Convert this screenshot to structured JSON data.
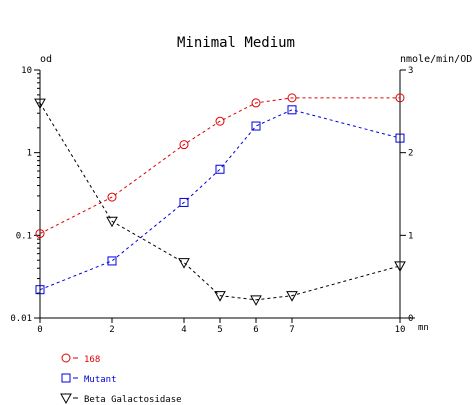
{
  "chart_data": {
    "type": "line",
    "title": "Minimal Medium",
    "x": [
      0,
      2,
      4,
      5,
      6,
      7,
      10
    ],
    "x_ticks": [
      0,
      2,
      4,
      5,
      6,
      7,
      10
    ],
    "x_tick_labels": [
      "0",
      "2",
      "4",
      "5",
      "6",
      "7",
      "10"
    ],
    "xlabel": "mn",
    "xlim": [
      0,
      10
    ],
    "y_left": {
      "label": "od",
      "scale": "log",
      "lim": [
        0.01,
        10
      ],
      "ticks": [
        0.01,
        0.1,
        1,
        10
      ],
      "tick_labels": [
        "0.01",
        "0.1",
        "1",
        "10"
      ]
    },
    "y_right": {
      "label": "nmole/min/OD",
      "scale": "linear",
      "lim": [
        0,
        3
      ],
      "ticks": [
        0,
        1,
        2,
        3
      ],
      "tick_labels": [
        "0",
        "1",
        "2",
        "3"
      ]
    },
    "grid": false,
    "legend_position": "bottom-left",
    "series": [
      {
        "name": "168",
        "axis": "left",
        "color": "#e00000",
        "marker": "circle",
        "style": "dashed",
        "values": [
          0.105,
          0.29,
          1.25,
          2.4,
          4.0,
          4.6,
          4.6
        ]
      },
      {
        "name": "Mutant",
        "axis": "left",
        "color": "#0000e0",
        "marker": "square",
        "style": "dashed",
        "values": [
          0.022,
          0.049,
          0.25,
          0.63,
          2.1,
          3.3,
          1.5
        ]
      },
      {
        "name": "Beta Galactosidase",
        "axis": "right",
        "color": "#000000",
        "marker": "triangle-down",
        "style": "dashed",
        "values": [
          2.6,
          1.17,
          0.67,
          0.27,
          0.22,
          0.27,
          0.63
        ]
      }
    ]
  }
}
